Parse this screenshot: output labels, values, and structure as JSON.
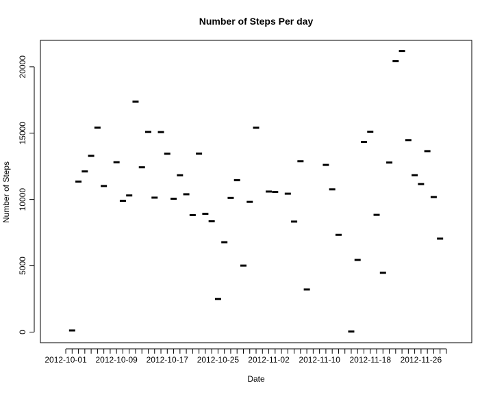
{
  "chart_data": {
    "type": "scatter",
    "title": "Number of Steps Per day",
    "xlabel": "Date",
    "ylabel": "Number of Steps",
    "grid": false,
    "legend": "none",
    "colors": {
      "mark": "#000000",
      "axis": "#000000",
      "background": "#ffffff"
    },
    "x_tick_labels": [
      "2012-10-01",
      "2012-10-09",
      "2012-10-17",
      "2012-10-25",
      "2012-11-02",
      "2012-11-10",
      "2012-11-18",
      "2012-11-26"
    ],
    "y_ticks": [
      0,
      5000,
      10000,
      15000,
      20000
    ],
    "y_tick_labels": [
      "0",
      "5000",
      "10000",
      "15000",
      "20000"
    ],
    "ylim": [
      -800,
      22000
    ],
    "xlim": [
      "2012-09-27",
      "2012-12-04"
    ],
    "x": [
      "2012-10-02",
      "2012-10-03",
      "2012-10-04",
      "2012-10-05",
      "2012-10-06",
      "2012-10-07",
      "2012-10-09",
      "2012-10-10",
      "2012-10-11",
      "2012-10-12",
      "2012-10-13",
      "2012-10-14",
      "2012-10-15",
      "2012-10-16",
      "2012-10-17",
      "2012-10-18",
      "2012-10-19",
      "2012-10-20",
      "2012-10-21",
      "2012-10-22",
      "2012-10-23",
      "2012-10-24",
      "2012-10-25",
      "2012-10-26",
      "2012-10-27",
      "2012-10-28",
      "2012-10-29",
      "2012-10-30",
      "2012-10-31",
      "2012-11-02",
      "2012-11-03",
      "2012-11-05",
      "2012-11-06",
      "2012-11-07",
      "2012-11-08",
      "2012-11-11",
      "2012-11-12",
      "2012-11-13",
      "2012-11-15",
      "2012-11-16",
      "2012-11-17",
      "2012-11-18",
      "2012-11-19",
      "2012-11-20",
      "2012-11-21",
      "2012-11-22",
      "2012-11-23",
      "2012-11-24",
      "2012-11-25",
      "2012-11-26",
      "2012-11-27",
      "2012-11-28",
      "2012-11-29"
    ],
    "values": [
      126,
      11352,
      12116,
      13294,
      15420,
      11015,
      12811,
      9900,
      10304,
      17382,
      12426,
      15098,
      10139,
      15084,
      13452,
      10056,
      11829,
      10395,
      8821,
      13460,
      8918,
      8355,
      2492,
      6778,
      10119,
      11458,
      5018,
      9819,
      15414,
      10600,
      10571,
      10439,
      8334,
      12883,
      3219,
      12608,
      10765,
      7336,
      41,
      5441,
      14339,
      15110,
      8841,
      4472,
      12787,
      20427,
      21194,
      14478,
      11834,
      11162,
      13646,
      10183,
      7047
    ]
  }
}
